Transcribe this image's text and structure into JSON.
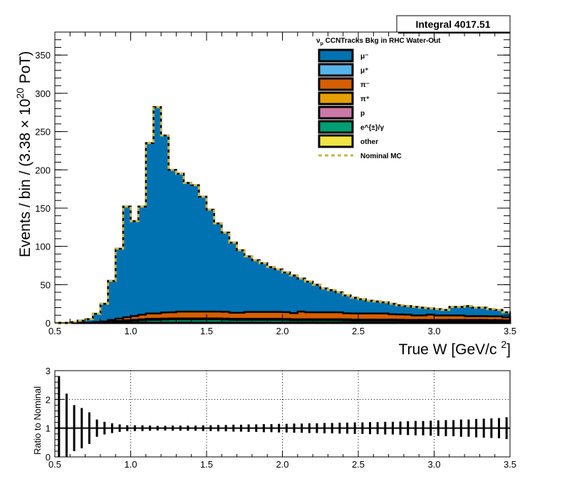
{
  "stats_box": {
    "label": "Integral 4017.51"
  },
  "chart_data": [
    {
      "type": "area",
      "stacked": true,
      "legend_title": "ν_μ CCNTracks Bkg in RHC Water-Out",
      "legend_title_parts": {
        "nu": "ν",
        "mu": "μ",
        "rest": " CCNTracks Bkg in RHC Water-Out"
      },
      "xlabel": "True W [GeV/c ²]",
      "xlabel_parts": {
        "main": "True W [GeV/c ",
        "sup": "2",
        "end": "]"
      },
      "ylabel": "Events / bin / (3.38 × 10^20 PoT)",
      "ylabel_parts": {
        "pre": "Events / bin / (3.38  × 10",
        "sup": "20",
        "post": " PoT)"
      },
      "xlim": [
        0.5,
        3.5
      ],
      "ylim": [
        0,
        380
      ],
      "x_ticks": [
        "0.5",
        "1.0",
        "1.5",
        "2.0",
        "2.5",
        "3.0",
        "3.5"
      ],
      "y_ticks": [
        "0",
        "50",
        "100",
        "150",
        "200",
        "250",
        "300",
        "350"
      ],
      "grid": false,
      "legend_position": "top-right",
      "bin_edges_start": 0.5,
      "bin_width": 0.05,
      "total": [
        0,
        0,
        1,
        3,
        5,
        12,
        25,
        55,
        97,
        152,
        133,
        152,
        235,
        282,
        245,
        200,
        195,
        183,
        180,
        165,
        148,
        130,
        118,
        105,
        95,
        87,
        82,
        78,
        73,
        70,
        66,
        62,
        58,
        54,
        50,
        45,
        43,
        40,
        36,
        33,
        31,
        29,
        28,
        27,
        25,
        23,
        22,
        21,
        20,
        19,
        18,
        17,
        21,
        21,
        22,
        20,
        20,
        18,
        17,
        14
      ],
      "series": [
        {
          "name": "μ⁻",
          "color": "#0072b2"
        },
        {
          "name": "μ⁺",
          "color": "#56b4e9"
        },
        {
          "name": "π⁻",
          "color": "#d55e00",
          "values": [
            0,
            0,
            0,
            0,
            0.3,
            0.6,
            1,
            2,
            3,
            4,
            5,
            6,
            7,
            7,
            8,
            8,
            9,
            9,
            9,
            9,
            9,
            9,
            9,
            8,
            8,
            9,
            9,
            9,
            9,
            9,
            9,
            8,
            10,
            9,
            9,
            9,
            9,
            9,
            8,
            8,
            8,
            8,
            8,
            8,
            7,
            7,
            7,
            6,
            6,
            7,
            6,
            6,
            6,
            6,
            5,
            5,
            5,
            5,
            5,
            4
          ]
        },
        {
          "name": "π⁺",
          "color": "#e69f00",
          "values": [
            0,
            0,
            0,
            0,
            0.1,
            0.2,
            0.3,
            0.5,
            0.6,
            0.7,
            0.8,
            0.9,
            1,
            1,
            1,
            1,
            1,
            1,
            1,
            1,
            1,
            1,
            1,
            1,
            1,
            1,
            1,
            1,
            1,
            1,
            1,
            1,
            1,
            1,
            1,
            1,
            1,
            1,
            1,
            1,
            1,
            1,
            1,
            1,
            1,
            1,
            1,
            1,
            1,
            1,
            1,
            1,
            1,
            1,
            1,
            1,
            1,
            1,
            1,
            1
          ]
        },
        {
          "name": "p",
          "color": "#cc79a7",
          "values": [
            0,
            0,
            0,
            0,
            0,
            0.1,
            0.1,
            0.2,
            0.2,
            0.3,
            0.3,
            0.3,
            0.3,
            0.3,
            0.3,
            0.3,
            0.3,
            0.3,
            0.3,
            0.3,
            0.3,
            0.3,
            0.3,
            0.3,
            0.3,
            0.3,
            0.3,
            0.3,
            0.3,
            0.3,
            0.3,
            0.3,
            0.3,
            0.3,
            0.3,
            0.3,
            0.3,
            0.3,
            0.3,
            0.3,
            0.3,
            0.3,
            0.3,
            0.3,
            0.3,
            0.3,
            0.3,
            0.3,
            0.3,
            0.3,
            0.3,
            0.3,
            0.3,
            0.3,
            0.3,
            0.3,
            0.3,
            0.3,
            0.3,
            0.3
          ]
        },
        {
          "name": "e^{±}/γ",
          "color": "#009e73",
          "values": [
            0,
            0,
            0,
            0,
            0,
            0.3,
            0.5,
            1,
            1.5,
            2,
            2.5,
            3,
            3.5,
            3.5,
            3.8,
            4,
            4,
            4,
            4,
            4,
            4,
            4,
            3.8,
            3.5,
            3.5,
            3.5,
            3.5,
            3.5,
            3.5,
            3.5,
            3.3,
            3,
            3,
            3,
            3,
            3,
            3,
            3,
            2.8,
            2.5,
            2.5,
            2.5,
            2.5,
            2.5,
            2.5,
            2.3,
            2,
            2,
            2,
            2,
            2,
            2,
            2,
            2,
            2,
            2,
            2,
            1.8,
            1.8,
            1.5
          ]
        },
        {
          "name": "other",
          "color": "#f0e442",
          "values": [
            0,
            0,
            0,
            0,
            0,
            0,
            0,
            0.2,
            0.3,
            0.4,
            0.4,
            0.5,
            0.5,
            0.5,
            0.5,
            0.5,
            0.5,
            0.5,
            0.5,
            0.5,
            0.5,
            0.5,
            0.5,
            0.5,
            0.5,
            0.5,
            0.5,
            0.5,
            0.5,
            0.5,
            0.5,
            0.5,
            0.5,
            0.5,
            0.5,
            0.5,
            0.5,
            0.5,
            0.5,
            0.5,
            0.5,
            0.5,
            0.5,
            0.5,
            0.5,
            0.5,
            0.5,
            0.5,
            0.5,
            0.5,
            0.5,
            0.5,
            0.5,
            0.5,
            0.5,
            0.5,
            0.5,
            0.5,
            0.5,
            0.5
          ]
        },
        {
          "name": "Nominal MC",
          "color": "#c8b44a",
          "style": "dashed"
        }
      ]
    },
    {
      "type": "scatter",
      "ylabel": "Ratio to Nominal",
      "xlim": [
        0.5,
        3.5
      ],
      "ylim": [
        0,
        3
      ],
      "x_ticks": [
        "0.5",
        "1.0",
        "1.5",
        "2.0",
        "2.5",
        "3.0",
        "3.5"
      ],
      "y_ticks": [
        "0",
        "1",
        "2",
        "3"
      ],
      "grid": true,
      "x": [
        0.55,
        0.6,
        0.65,
        0.7,
        0.75,
        0.8,
        0.85,
        0.9,
        0.95,
        1.0,
        1.05,
        1.1,
        1.15,
        1.2,
        1.25,
        1.3,
        1.35,
        1.4,
        1.45,
        1.5,
        1.55,
        1.6,
        1.65,
        1.7,
        1.75,
        1.8,
        1.85,
        1.9,
        1.95,
        2.0,
        2.05,
        2.1,
        2.15,
        2.2,
        2.25,
        2.3,
        2.35,
        2.4,
        2.45,
        2.5,
        2.55,
        2.6,
        2.65,
        2.7,
        2.75,
        2.8,
        2.85,
        2.9,
        2.95,
        3.0,
        3.05,
        3.1,
        3.15,
        3.2,
        3.25,
        3.3,
        3.35,
        3.4,
        3.45,
        3.5
      ],
      "y": [
        1,
        1,
        1,
        1,
        1,
        1,
        1,
        1,
        1,
        1,
        1,
        1,
        1,
        1,
        1,
        1,
        1,
        1,
        1,
        1,
        1,
        1,
        1,
        1,
        1,
        1,
        1,
        1,
        1,
        1,
        1,
        1,
        1,
        1,
        1,
        1,
        1,
        1,
        1,
        1,
        1,
        1,
        1,
        1,
        1,
        1,
        1,
        1,
        1,
        1,
        1,
        1,
        1,
        1,
        1,
        1,
        1,
        1,
        1,
        1
      ],
      "err": [
        1.8,
        1.2,
        0.8,
        0.7,
        0.55,
        0.3,
        0.22,
        0.17,
        0.13,
        0.1,
        0.1,
        0.1,
        0.09,
        0.08,
        0.08,
        0.09,
        0.09,
        0.09,
        0.09,
        0.1,
        0.1,
        0.11,
        0.11,
        0.12,
        0.12,
        0.13,
        0.13,
        0.14,
        0.14,
        0.15,
        0.15,
        0.16,
        0.16,
        0.17,
        0.17,
        0.18,
        0.18,
        0.19,
        0.19,
        0.2,
        0.2,
        0.21,
        0.21,
        0.22,
        0.22,
        0.23,
        0.24,
        0.25,
        0.25,
        0.26,
        0.27,
        0.28,
        0.28,
        0.3,
        0.3,
        0.32,
        0.33,
        0.34,
        0.35,
        0.38
      ]
    }
  ]
}
